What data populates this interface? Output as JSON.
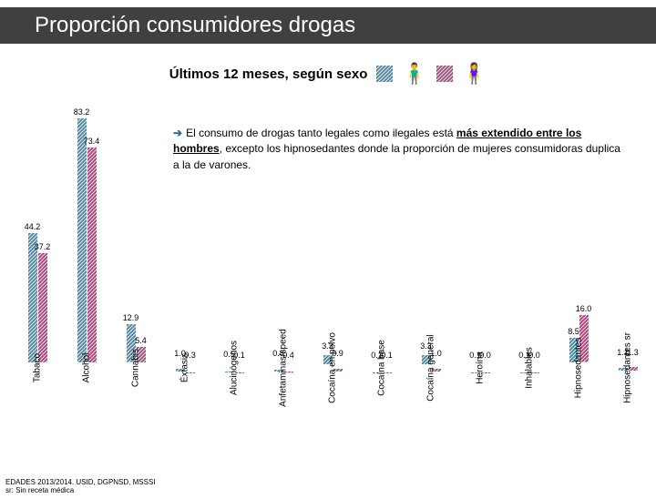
{
  "title": "Proporción consumidores drogas",
  "subtitle": "Últimos 12 meses, según sexo",
  "legend": {
    "male_color": "#4a8aa8",
    "female_color": "#a84a7a",
    "male_icon": "🧍‍♂️",
    "female_icon": "🧍‍♀️"
  },
  "annotation": {
    "arrow": "➔",
    "text_before_underline": "El consumo de drogas tanto legales como ilegales está ",
    "underlined": "más extendido entre los hombres",
    "text_after_underline": ", excepto los hipnosedantes donde la proporción de mujeres consumidoras duplica a la de varones."
  },
  "chart": {
    "type": "bar",
    "y_max": 90,
    "bar_colors": [
      "#4a8aa8",
      "#a84a7a"
    ],
    "value_fontsize": 9,
    "label_fontsize": 10,
    "categories": [
      {
        "label": "Tabaco",
        "m": 44.2,
        "f": 37.2
      },
      {
        "label": "Alcohol",
        "m": 83.2,
        "f": 73.4
      },
      {
        "label": "Cannabis",
        "m": 12.9,
        "f": 5.4
      },
      {
        "label": "Éxtasis",
        "m": 1.0,
        "f": 0.3
      },
      {
        "label": "Alucinógenos",
        "m": 0.5,
        "f": 0.1
      },
      {
        "label": "Anfetaminas/speed",
        "m": 0.8,
        "f": 0.4
      },
      {
        "label": "Cocaína en polvo",
        "m": 3.3,
        "f": 0.9
      },
      {
        "label": "Cocaína base",
        "m": 0.1,
        "f": 0.1
      },
      {
        "label": "Cocaína general",
        "m": 3.3,
        "f": 1.0
      },
      {
        "label": "Heroína",
        "m": 0.1,
        "f": 0.0
      },
      {
        "label": "Inhalables",
        "m": 0.1,
        "f": 0.0
      },
      {
        "label": "Hipnosedantes",
        "m": 8.5,
        "f": 16.0
      },
      {
        "label": "Hipnosedantes sr",
        "m": 1.1,
        "f": 1.3
      }
    ]
  },
  "footer": {
    "line1": "EDADES 2013/2014. USID, DGPNSD, MSSSI",
    "line2": "sr: Sin receta médica"
  }
}
